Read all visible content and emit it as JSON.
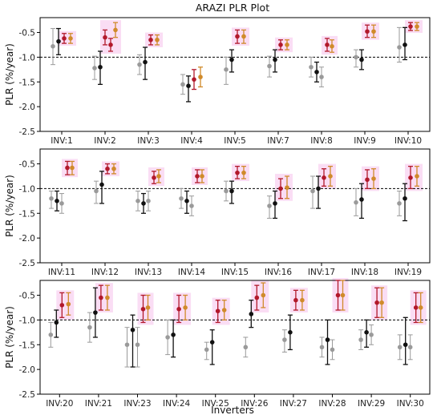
{
  "title": "ARAZI PLR Plot",
  "xlabel": "Inverters",
  "ylabel": "PLR (%/year)",
  "colors": {
    "black": "#111111",
    "gray": "#9a9a9a",
    "red": "#b2182b",
    "orange": "#d08a2a",
    "highlight": "#f9d9f3",
    "reference_line": "#000000"
  },
  "chart_data": [
    {
      "type": "scatter",
      "subtype": "errorbar",
      "ylim": [
        -2.5,
        -0.2
      ],
      "yticks": [
        -2.5,
        -2.0,
        -1.5,
        -1.0,
        -0.5
      ],
      "ytick_labels": [
        "-2.5",
        "-2.0",
        "-1.5",
        "-1.0",
        "-0.5"
      ],
      "reference_line": -1.0,
      "categories": [
        "INV:1",
        "INV:2",
        "INV:3",
        "INV:4",
        "INV:5",
        "INV:7",
        "INV:8",
        "INV:9",
        "INV:10"
      ],
      "groups": [
        {
          "highlighted": true,
          "points": [
            [
              -0.78,
              -0.42,
              -1.15,
              "gray"
            ],
            [
              -0.68,
              -0.42,
              -0.95,
              "black"
            ],
            [
              -0.62,
              -0.52,
              -0.72,
              "red"
            ],
            [
              -0.62,
              -0.52,
              -0.72,
              "orange"
            ]
          ]
        },
        {
          "highlighted": true,
          "points": [
            [
              -1.22,
              -0.98,
              -1.45,
              "gray"
            ],
            [
              -1.2,
              -0.88,
              -1.55,
              "black"
            ],
            [
              -0.6,
              -0.45,
              -0.75,
              "red"
            ],
            [
              -0.75,
              -0.62,
              -0.88,
              "red"
            ],
            [
              -0.45,
              -0.3,
              -0.6,
              "orange"
            ]
          ]
        },
        {
          "highlighted": true,
          "points": [
            [
              -1.15,
              -0.95,
              -1.35,
              "gray"
            ],
            [
              -1.1,
              -0.8,
              -1.45,
              "black"
            ],
            [
              -0.65,
              -0.55,
              -0.75,
              "red"
            ],
            [
              -0.65,
              -0.55,
              -0.75,
              "orange"
            ]
          ]
        },
        {
          "highlighted": false,
          "points": [
            [
              -1.55,
              -1.35,
              -1.75,
              "gray"
            ],
            [
              -1.58,
              -1.38,
              -1.9,
              "black"
            ],
            [
              -1.45,
              -1.25,
              -1.65,
              "red"
            ],
            [
              -1.4,
              -1.2,
              -1.6,
              "orange"
            ]
          ]
        },
        {
          "highlighted": true,
          "points": [
            [
              -1.25,
              -1.0,
              -1.55,
              "gray"
            ],
            [
              -1.05,
              -0.85,
              -1.3,
              "black"
            ],
            [
              -0.58,
              -0.45,
              -0.72,
              "red"
            ],
            [
              -0.58,
              -0.45,
              -0.72,
              "orange"
            ]
          ]
        },
        {
          "highlighted": true,
          "points": [
            [
              -1.18,
              -0.98,
              -1.4,
              "gray"
            ],
            [
              -1.05,
              -0.85,
              -1.3,
              "black"
            ],
            [
              -0.75,
              -0.65,
              -0.85,
              "red"
            ],
            [
              -0.75,
              -0.65,
              -0.85,
              "orange"
            ]
          ]
        },
        {
          "highlighted": true,
          "points": [
            [
              -1.2,
              -1.0,
              -1.4,
              "gray"
            ],
            [
              -1.3,
              -1.1,
              -1.5,
              "black"
            ],
            [
              -1.4,
              -1.2,
              -1.6,
              "gray"
            ],
            [
              -0.75,
              -0.62,
              -0.88,
              "red"
            ],
            [
              -0.78,
              -0.65,
              -0.9,
              "orange"
            ]
          ]
        },
        {
          "highlighted": true,
          "points": [
            [
              -1.0,
              -0.85,
              -1.2,
              "gray"
            ],
            [
              -1.05,
              -0.85,
              -1.25,
              "black"
            ],
            [
              -0.48,
              -0.35,
              -0.6,
              "red"
            ],
            [
              -0.48,
              -0.35,
              -0.6,
              "orange"
            ]
          ]
        },
        {
          "highlighted": true,
          "points": [
            [
              -0.8,
              -0.4,
              -1.1,
              "gray"
            ],
            [
              -0.75,
              -0.4,
              -1.05,
              "black"
            ],
            [
              -0.38,
              -0.3,
              -0.46,
              "red"
            ],
            [
              -0.38,
              -0.3,
              -0.46,
              "orange"
            ]
          ]
        }
      ]
    },
    {
      "type": "scatter",
      "subtype": "errorbar",
      "ylim": [
        -2.5,
        -0.2
      ],
      "yticks": [
        -2.5,
        -2.0,
        -1.5,
        -1.0,
        -0.5
      ],
      "ytick_labels": [
        "-2.5",
        "-2.0",
        "-1.5",
        "-1.0",
        "-0.5"
      ],
      "reference_line": -1.0,
      "categories": [
        "INV:11",
        "INV:12",
        "INV:13",
        "INV:14",
        "INV:15",
        "INV:16",
        "INV:17",
        "INV:18",
        "INV:19"
      ],
      "groups": [
        {
          "highlighted": true,
          "points": [
            [
              -1.2,
              -1.05,
              -1.4,
              "gray"
            ],
            [
              -1.25,
              -1.05,
              -1.45,
              "black"
            ],
            [
              -1.3,
              -1.1,
              -1.5,
              "gray"
            ],
            [
              -0.58,
              -0.45,
              -0.72,
              "red"
            ],
            [
              -0.58,
              -0.45,
              -0.72,
              "orange"
            ]
          ]
        },
        {
          "highlighted": true,
          "points": [
            [
              -1.05,
              -0.85,
              -1.3,
              "gray"
            ],
            [
              -0.92,
              -0.65,
              -1.3,
              "black"
            ],
            [
              -0.6,
              -0.5,
              -0.7,
              "red"
            ],
            [
              -0.6,
              -0.5,
              -0.7,
              "orange"
            ]
          ]
        },
        {
          "highlighted": true,
          "points": [
            [
              -1.25,
              -1.05,
              -1.45,
              "gray"
            ],
            [
              -1.3,
              -1.1,
              -1.5,
              "black"
            ],
            [
              -1.25,
              -1.05,
              -1.45,
              "gray"
            ],
            [
              -0.78,
              -0.65,
              -0.9,
              "red"
            ],
            [
              -0.75,
              -0.62,
              -0.88,
              "orange"
            ]
          ]
        },
        {
          "highlighted": true,
          "points": [
            [
              -1.2,
              -1.0,
              -1.4,
              "gray"
            ],
            [
              -1.25,
              -1.05,
              -1.5,
              "black"
            ],
            [
              -1.35,
              -1.15,
              -1.55,
              "gray"
            ],
            [
              -0.75,
              -0.62,
              -0.88,
              "red"
            ],
            [
              -0.75,
              -0.62,
              -0.88,
              "orange"
            ]
          ]
        },
        {
          "highlighted": true,
          "points": [
            [
              -1.05,
              -0.85,
              -1.25,
              "gray"
            ],
            [
              -1.05,
              -0.85,
              -1.3,
              "black"
            ],
            [
              -0.68,
              -0.55,
              -0.8,
              "red"
            ],
            [
              -0.68,
              -0.55,
              -0.8,
              "orange"
            ]
          ]
        },
        {
          "highlighted": true,
          "points": [
            [
              -1.35,
              -1.15,
              -1.6,
              "gray"
            ],
            [
              -1.3,
              -1.05,
              -1.6,
              "black"
            ],
            [
              -1.0,
              -0.8,
              -1.2,
              "red"
            ],
            [
              -0.98,
              -0.75,
              -1.2,
              "orange"
            ]
          ]
        },
        {
          "highlighted": true,
          "points": [
            [
              -1.05,
              -0.75,
              -1.4,
              "gray"
            ],
            [
              -1.0,
              -0.75,
              -1.4,
              "black"
            ],
            [
              -0.78,
              -0.6,
              -0.95,
              "red"
            ],
            [
              -0.75,
              -0.55,
              -0.95,
              "orange"
            ]
          ]
        },
        {
          "highlighted": true,
          "points": [
            [
              -1.28,
              -1.0,
              -1.55,
              "gray"
            ],
            [
              -1.22,
              -0.9,
              -1.6,
              "black"
            ],
            [
              -0.82,
              -0.62,
              -1.0,
              "red"
            ],
            [
              -0.8,
              -0.6,
              -1.0,
              "orange"
            ]
          ]
        },
        {
          "highlighted": true,
          "points": [
            [
              -1.3,
              -1.05,
              -1.55,
              "gray"
            ],
            [
              -1.2,
              -0.9,
              -1.65,
              "black"
            ],
            [
              -0.78,
              -0.55,
              -1.0,
              "red"
            ],
            [
              -0.75,
              -0.55,
              -0.95,
              "orange"
            ]
          ]
        }
      ]
    },
    {
      "type": "scatter",
      "subtype": "errorbar",
      "ylim": [
        -2.5,
        -0.2
      ],
      "yticks": [
        -2.5,
        -2.0,
        -1.5,
        -1.0,
        -0.5
      ],
      "ytick_labels": [
        "-2.5",
        "-2.0",
        "-1.5",
        "-1.0",
        "-0.5"
      ],
      "reference_line": -1.0,
      "categories": [
        "INV:20",
        "INV:21",
        "INV:23",
        "INV:24",
        "INV:25",
        "INV:26",
        "INV:27",
        "INV:28",
        "INV:29",
        "INV:30"
      ],
      "groups": [
        {
          "highlighted": true,
          "points": [
            [
              -1.3,
              -1.05,
              -1.55,
              "gray"
            ],
            [
              -1.05,
              -0.8,
              -1.35,
              "black"
            ],
            [
              -0.7,
              -0.45,
              -0.95,
              "red"
            ],
            [
              -0.68,
              -0.45,
              -0.9,
              "orange"
            ]
          ]
        },
        {
          "highlighted": true,
          "points": [
            [
              -1.15,
              -0.85,
              -1.45,
              "gray"
            ],
            [
              -0.85,
              -0.35,
              -1.35,
              "black"
            ],
            [
              -0.55,
              -0.3,
              -0.8,
              "red"
            ],
            [
              -0.55,
              -0.3,
              -0.8,
              "orange"
            ]
          ]
        },
        {
          "highlighted": true,
          "points": [
            [
              -1.5,
              -1.15,
              -1.95,
              "gray"
            ],
            [
              -1.2,
              -0.9,
              -1.95,
              "black"
            ],
            [
              -1.5,
              -1.15,
              -1.95,
              "gray"
            ],
            [
              -0.78,
              -0.5,
              -1.05,
              "red"
            ],
            [
              -0.75,
              -0.5,
              -1.0,
              "orange"
            ]
          ]
        },
        {
          "highlighted": true,
          "points": [
            [
              -1.35,
              -1.0,
              -1.7,
              "gray"
            ],
            [
              -1.3,
              -1.0,
              -1.75,
              "black"
            ],
            [
              -0.78,
              -0.5,
              -1.05,
              "red"
            ],
            [
              -0.75,
              -0.5,
              -1.0,
              "orange"
            ]
          ]
        },
        {
          "highlighted": true,
          "points": [
            [
              -1.6,
              -1.45,
              -1.8,
              "gray"
            ],
            [
              -1.45,
              -1.2,
              -1.9,
              "black"
            ],
            [
              -0.82,
              -0.6,
              -1.05,
              "red"
            ],
            [
              -0.8,
              -0.6,
              -1.0,
              "orange"
            ]
          ]
        },
        {
          "highlighted": true,
          "points": [
            [
              -1.55,
              -1.35,
              -1.75,
              "gray"
            ],
            [
              -0.88,
              -0.6,
              -1.15,
              "black"
            ],
            [
              -0.55,
              -0.3,
              -0.8,
              "red"
            ],
            [
              -0.5,
              -0.25,
              -0.75,
              "orange"
            ]
          ]
        },
        {
          "highlighted": true,
          "points": [
            [
              -1.4,
              -1.2,
              -1.65,
              "gray"
            ],
            [
              -1.25,
              -0.9,
              -1.6,
              "black"
            ],
            [
              -0.6,
              -0.4,
              -0.8,
              "red"
            ],
            [
              -0.6,
              -0.4,
              -0.8,
              "orange"
            ]
          ]
        },
        {
          "highlighted": true,
          "points": [
            [
              -1.55,
              -1.35,
              -1.75,
              "gray"
            ],
            [
              -1.4,
              -1.0,
              -1.9,
              "black"
            ],
            [
              -1.6,
              -1.4,
              -1.8,
              "gray"
            ],
            [
              -0.5,
              -0.2,
              -0.8,
              "red"
            ],
            [
              -0.5,
              -0.2,
              -0.8,
              "orange"
            ]
          ]
        },
        {
          "highlighted": true,
          "points": [
            [
              -1.4,
              -1.2,
              -1.6,
              "gray"
            ],
            [
              -1.25,
              -1.0,
              -1.55,
              "black"
            ],
            [
              -1.3,
              -1.1,
              -1.5,
              "gray"
            ],
            [
              -0.65,
              -0.35,
              -0.95,
              "red"
            ],
            [
              -0.65,
              -0.35,
              -0.95,
              "orange"
            ]
          ]
        },
        {
          "highlighted": true,
          "points": [
            [
              -1.55,
              -1.3,
              -1.8,
              "gray"
            ],
            [
              -1.5,
              -0.95,
              -1.9,
              "black"
            ],
            [
              -1.55,
              -1.3,
              -1.8,
              "gray"
            ],
            [
              -0.75,
              -0.45,
              -1.05,
              "red"
            ],
            [
              -0.75,
              -0.45,
              -1.05,
              "orange"
            ]
          ]
        }
      ]
    }
  ]
}
